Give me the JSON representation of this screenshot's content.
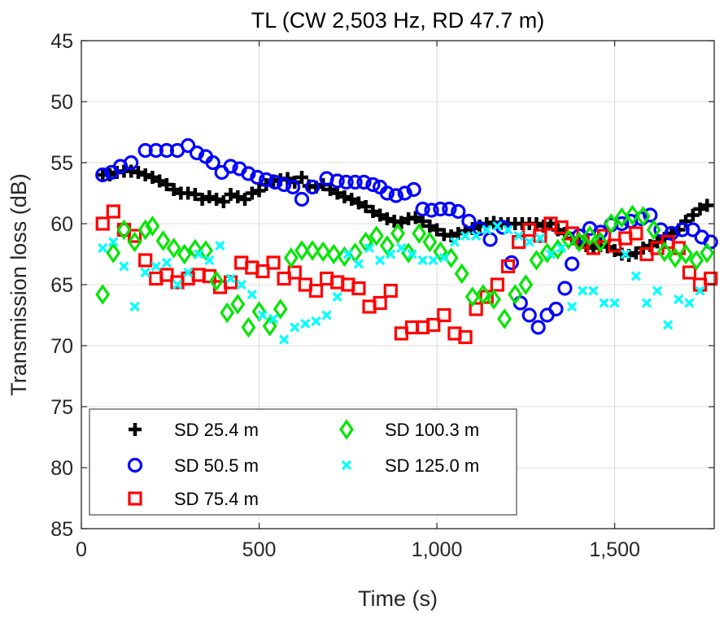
{
  "chart_data": {
    "type": "scatter",
    "title": "TL (CW 2,503 Hz, RD 47.7 m)",
    "xlabel": "Time (s)",
    "ylabel": "Transmission loss (dB)",
    "xlim": [
      0,
      1780
    ],
    "ylim": [
      45,
      85
    ],
    "y_reversed": true,
    "grid": true,
    "x_ticks": [
      0,
      500,
      1000,
      1500
    ],
    "x_tick_labels": [
      "0",
      "500",
      "1,000",
      "1,500"
    ],
    "y_ticks": [
      45,
      50,
      55,
      60,
      65,
      70,
      75,
      80,
      85
    ],
    "y_tick_labels": [
      "45",
      "50",
      "55",
      "60",
      "65",
      "70",
      "75",
      "80",
      "85"
    ],
    "legend_position": "bottom-left",
    "series": [
      {
        "name": "SD 25.4 m",
        "marker": "plus",
        "color": "#000000",
        "x": [
          60,
          80,
          100,
          120,
          140,
          160,
          180,
          200,
          220,
          240,
          260,
          280,
          300,
          320,
          340,
          360,
          380,
          400,
          420,
          440,
          460,
          480,
          500,
          520,
          540,
          560,
          580,
          600,
          620,
          640,
          660,
          680,
          700,
          720,
          740,
          760,
          780,
          800,
          820,
          840,
          860,
          880,
          900,
          920,
          940,
          960,
          980,
          1000,
          1020,
          1040,
          1060,
          1080,
          1100,
          1120,
          1140,
          1160,
          1180,
          1200,
          1220,
          1240,
          1260,
          1280,
          1300,
          1320,
          1340,
          1360,
          1380,
          1400,
          1420,
          1440,
          1460,
          1480,
          1500,
          1520,
          1540,
          1560,
          1580,
          1600,
          1620,
          1640,
          1660,
          1680,
          1700,
          1720,
          1740,
          1760
        ],
        "y": [
          56.0,
          56.0,
          55.8,
          55.7,
          55.7,
          55.8,
          56.0,
          56.2,
          56.5,
          56.8,
          57.2,
          57.5,
          57.5,
          57.6,
          58.0,
          57.8,
          58.0,
          58.2,
          57.6,
          57.8,
          58.0,
          57.5,
          57.3,
          56.8,
          56.5,
          56.4,
          56.3,
          56.6,
          56.2,
          56.9,
          57.0,
          56.8,
          57.2,
          57.5,
          57.8,
          58.0,
          58.3,
          58.6,
          59.0,
          59.3,
          59.6,
          59.8,
          59.9,
          59.6,
          59.5,
          59.8,
          60.2,
          60.5,
          60.9,
          61.0,
          60.8,
          60.6,
          60.4,
          60.2,
          60.0,
          59.9,
          60.0,
          60.0,
          60.0,
          60.0,
          60.0,
          60.0,
          60.2,
          60.0,
          60.5,
          60.8,
          61.2,
          61.5,
          61.8,
          62.0,
          61.8,
          61.9,
          62.2,
          62.5,
          62.6,
          62.4,
          62.0,
          61.8,
          61.5,
          61.2,
          60.8,
          60.5,
          59.8,
          59.3,
          58.8,
          58.5
        ]
      },
      {
        "name": "SD 50.5 m",
        "marker": "circle",
        "color": "#0000ff",
        "x": [
          60,
          85,
          110,
          140,
          180,
          210,
          240,
          270,
          300,
          325,
          350,
          370,
          395,
          420,
          445,
          470,
          495,
          520,
          545,
          570,
          595,
          620,
          650,
          690,
          720,
          745,
          770,
          795,
          820,
          840,
          860,
          885,
          910,
          935,
          960,
          985,
          1010,
          1035,
          1060,
          1090,
          1120,
          1150,
          1185,
          1210,
          1235,
          1260,
          1285,
          1310,
          1335,
          1360,
          1380,
          1400,
          1430,
          1460,
          1490,
          1520,
          1545,
          1575,
          1600,
          1630,
          1660,
          1690,
          1720,
          1745,
          1770
        ],
        "y": [
          56.0,
          55.8,
          55.3,
          55.0,
          54.0,
          54.0,
          54.0,
          54.0,
          53.6,
          54.2,
          54.5,
          55.0,
          55.8,
          55.3,
          55.5,
          55.9,
          56.2,
          56.4,
          56.6,
          56.8,
          57.0,
          58.0,
          57.0,
          56.3,
          56.5,
          56.6,
          56.6,
          56.6,
          56.8,
          57.0,
          57.5,
          57.7,
          57.5,
          57.2,
          58.8,
          58.9,
          58.8,
          58.8,
          59.0,
          59.8,
          60.4,
          61.3,
          60.3,
          63.2,
          66.5,
          67.5,
          68.5,
          67.5,
          67.0,
          65.3,
          63.3,
          61.0,
          60.4,
          60.7,
          60.1,
          60.0,
          59.8,
          59.6,
          59.3,
          60.5,
          60.8,
          60.5,
          60.5,
          61.1,
          61.5
        ]
      },
      {
        "name": "SD 75.4 m",
        "marker": "square",
        "color": "#ff0000",
        "x": [
          60,
          90,
          120,
          150,
          180,
          210,
          240,
          270,
          300,
          330,
          360,
          390,
          420,
          450,
          480,
          510,
          540,
          570,
          600,
          630,
          660,
          690,
          720,
          750,
          780,
          810,
          840,
          870,
          900,
          930,
          960,
          990,
          1020,
          1050,
          1080,
          1110,
          1140,
          1170,
          1200,
          1230,
          1260,
          1290,
          1320,
          1350,
          1380,
          1410,
          1440,
          1470,
          1500,
          1530,
          1560,
          1590,
          1620,
          1650,
          1680,
          1710,
          1740,
          1770
        ],
        "y": [
          60.0,
          59.0,
          60.5,
          61.0,
          63.0,
          64.5,
          64.2,
          64.8,
          64.5,
          64.2,
          64.3,
          65.2,
          64.8,
          63.2,
          63.6,
          63.9,
          63.2,
          64.5,
          64.0,
          65.0,
          65.5,
          64.5,
          64.8,
          65.0,
          65.3,
          66.8,
          66.5,
          65.5,
          69.0,
          68.5,
          68.5,
          68.3,
          67.5,
          69.0,
          69.3,
          67.0,
          66.0,
          65.0,
          63.5,
          61.5,
          60.5,
          61.0,
          60.0,
          60.3,
          60.8,
          61.5,
          62.0,
          61.0,
          61.8,
          61.2,
          60.8,
          62.5,
          62.0,
          61.5,
          62.0,
          64.0,
          65.0,
          64.5
        ]
      },
      {
        "name": "SD 100.3 m",
        "marker": "diamond",
        "color": "#00e600",
        "x": [
          60,
          90,
          120,
          150,
          180,
          200,
          230,
          260,
          290,
          320,
          350,
          380,
          410,
          440,
          470,
          500,
          530,
          560,
          590,
          620,
          650,
          680,
          710,
          740,
          770,
          800,
          830,
          860,
          890,
          920,
          950,
          980,
          1010,
          1040,
          1070,
          1100,
          1130,
          1160,
          1190,
          1220,
          1250,
          1280,
          1310,
          1340,
          1370,
          1400,
          1430,
          1460,
          1490,
          1520,
          1550,
          1580,
          1610,
          1640,
          1670,
          1700,
          1730,
          1760
        ],
        "y": [
          65.8,
          62.4,
          60.5,
          61.5,
          60.5,
          60.2,
          61.4,
          62.0,
          62.5,
          62.1,
          62.2,
          64.7,
          67.3,
          66.6,
          68.5,
          67.2,
          68.4,
          67.0,
          62.8,
          62.2,
          62.2,
          62.3,
          62.5,
          62.7,
          62.4,
          61.5,
          61.0,
          61.8,
          60.8,
          62.4,
          60.8,
          61.5,
          62.3,
          62.8,
          64.1,
          66.0,
          65.8,
          66.2,
          67.8,
          65.8,
          65.0,
          63.0,
          62.4,
          62.1,
          61.3,
          61.5,
          61.0,
          61.5,
          60.0,
          59.5,
          59.3,
          59.4,
          60.5,
          62.3,
          62.8,
          62.5,
          63.0,
          62.4
        ]
      },
      {
        "name": "SD 125.0 m",
        "marker": "cross",
        "color": "#00ffff",
        "x": [
          60,
          90,
          120,
          150,
          180,
          210,
          240,
          270,
          300,
          330,
          360,
          390,
          420,
          450,
          480,
          510,
          540,
          570,
          600,
          630,
          660,
          690,
          720,
          750,
          780,
          810,
          840,
          870,
          900,
          930,
          960,
          990,
          1020,
          1050,
          1080,
          1110,
          1140,
          1170,
          1200,
          1230,
          1260,
          1290,
          1320,
          1350,
          1380,
          1410,
          1440,
          1470,
          1500,
          1530,
          1560,
          1590,
          1620,
          1650,
          1680,
          1710,
          1740
        ],
        "y": [
          62.0,
          61.5,
          63.5,
          66.8,
          64.0,
          63.5,
          63.2,
          65.0,
          64.0,
          62.5,
          63.0,
          61.8,
          64.5,
          65.0,
          65.8,
          67.5,
          67.8,
          69.5,
          68.5,
          68.2,
          68.0,
          67.5,
          66.0,
          62.5,
          63.3,
          62.0,
          63.0,
          62.5,
          62.0,
          62.5,
          63.0,
          63.0,
          62.8,
          61.5,
          61.0,
          61.0,
          60.5,
          60.2,
          60.5,
          61.0,
          61.5,
          61.2,
          62.5,
          62.0,
          66.8,
          65.5,
          65.5,
          66.5,
          66.5,
          62.5,
          64.3,
          66.5,
          65.5,
          68.3,
          66.2,
          66.5,
          65.5
        ]
      }
    ]
  }
}
